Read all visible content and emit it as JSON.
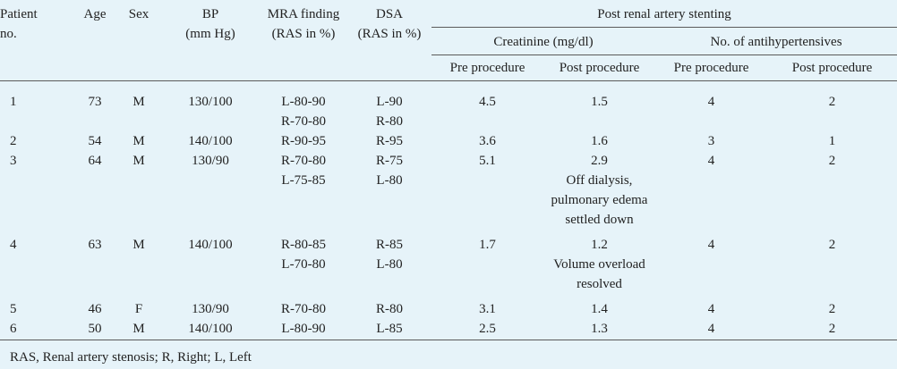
{
  "header": {
    "patient_no": [
      "Patient",
      "no."
    ],
    "age": "Age",
    "sex": "Sex",
    "bp": [
      "BP",
      "(mm Hg)"
    ],
    "mra": [
      "MRA finding",
      "(RAS in %)"
    ],
    "dsa": [
      "DSA",
      "(RAS in %)"
    ],
    "group": "Post renal artery stenting",
    "creatinine": "Creatinine (mg/dl)",
    "antihyp": "No. of antihypertensives",
    "pre": "Pre procedure",
    "post": "Post procedure"
  },
  "rows": [
    {
      "id": "1",
      "age": "73",
      "sex": "M",
      "bp": "130/100",
      "mra": [
        "L-80-90",
        "R-70-80"
      ],
      "dsa": [
        "L-90",
        "R-80"
      ],
      "cr_pre": "4.5",
      "cr_post": [
        "1.5"
      ],
      "ah_pre": "4",
      "ah_post": "2"
    },
    {
      "id": "2",
      "age": "54",
      "sex": "M",
      "bp": "140/100",
      "mra": [
        "R-90-95"
      ],
      "dsa": [
        "R-95"
      ],
      "cr_pre": "3.6",
      "cr_post": [
        "1.6"
      ],
      "ah_pre": "3",
      "ah_post": "1"
    },
    {
      "id": "3",
      "age": "64",
      "sex": "M",
      "bp": "130/90",
      "mra": [
        "R-70-80",
        "L-75-85"
      ],
      "dsa": [
        "R-75",
        "L-80"
      ],
      "cr_pre": "5.1",
      "cr_post": [
        "2.9",
        "Off dialysis,",
        "pulmonary edema",
        "settled down"
      ],
      "ah_pre": "4",
      "ah_post": "2"
    },
    {
      "id": "4",
      "age": "63",
      "sex": "M",
      "bp": "140/100",
      "mra": [
        "R-80-85",
        "L-70-80"
      ],
      "dsa": [
        "R-85",
        "L-80"
      ],
      "cr_pre": "1.7",
      "cr_post": [
        "1.2",
        "Volume overload",
        "resolved"
      ],
      "ah_pre": "4",
      "ah_post": "2"
    },
    {
      "id": "5",
      "age": "46",
      "sex": "F",
      "bp": "130/90",
      "mra": [
        "R-70-80"
      ],
      "dsa": [
        "R-80"
      ],
      "cr_pre": "3.1",
      "cr_post": [
        "1.4"
      ],
      "ah_pre": "4",
      "ah_post": "2"
    },
    {
      "id": "6",
      "age": "50",
      "sex": "M",
      "bp": "140/100",
      "mra": [
        "L-80-90"
      ],
      "dsa": [
        "L-85"
      ],
      "cr_pre": "2.5",
      "cr_post": [
        "1.3"
      ],
      "ah_pre": "4",
      "ah_post": "2"
    }
  ],
  "footnote": "RAS, Renal artery stenosis; R, Right; L, Left"
}
